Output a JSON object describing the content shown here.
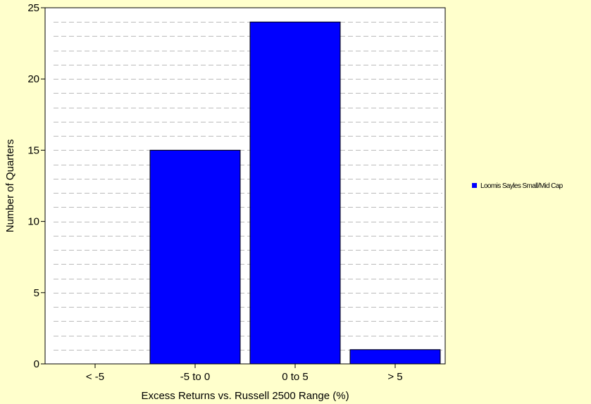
{
  "chart_data": {
    "type": "bar",
    "title": "",
    "xlabel": "Excess Returns vs. Russell 2500 Range (%)",
    "ylabel": "Number of Quarters",
    "categories": [
      "< -5",
      "-5 to 0",
      "0 to 5",
      "> 5"
    ],
    "series": [
      {
        "name": "Loomis Sayles Small/Mid Cap",
        "values": [
          0,
          15,
          24,
          1
        ],
        "color": "#0000FF"
      }
    ],
    "ylim": [
      0,
      25
    ],
    "yticks": [
      0,
      5,
      10,
      15,
      20,
      25
    ],
    "grid": "horizontal dashed, every 1 unit",
    "legend": "right",
    "colors": {
      "background": "#FFFFCC",
      "plot_background": "#FFFFFF",
      "bar": "#0000FF",
      "grid": "#BBBBBB"
    }
  }
}
